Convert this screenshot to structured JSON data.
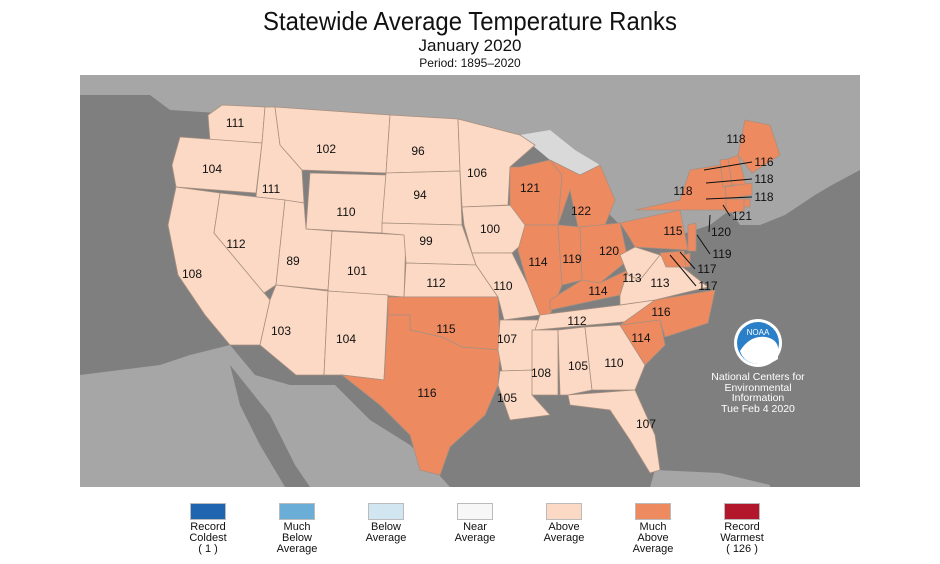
{
  "title": "Statewide Average Temperature Ranks",
  "subtitle": "January 2020",
  "period": "Period: 1895–2020",
  "colors": {
    "land_other": "#a6a6a6",
    "water": "#7f7f7f",
    "water_other": "#d9d9d9",
    "above_average": "#fcd9c4",
    "much_above_average": "#ee8a60",
    "state_border": "#a89080"
  },
  "legend": [
    {
      "label": "Record\nColdest\n( 1 )",
      "color": "#1f65b0"
    },
    {
      "label": "Much\nBelow\nAverage",
      "color": "#6aadd6"
    },
    {
      "label": "Below\nAverage",
      "color": "#d2e6f1"
    },
    {
      "label": "Near\nAverage",
      "color": "#f7f7f7"
    },
    {
      "label": "Above\nAverage",
      "color": "#fcd9c4"
    },
    {
      "label": "Much\nAbove\nAverage",
      "color": "#ee8a60"
    },
    {
      "label": "Record\nWarmest\n( 126 )",
      "color": "#b2172b"
    }
  ],
  "agency": {
    "logo_text": "NOAA",
    "lines": [
      "National Centers for",
      "Environmental",
      "Information",
      "Tue Feb  4 2020"
    ]
  },
  "states": [
    {
      "abbr": "WA",
      "rank": "111",
      "category": "above"
    },
    {
      "abbr": "OR",
      "rank": "104",
      "category": "above"
    },
    {
      "abbr": "CA",
      "rank": "108",
      "category": "above"
    },
    {
      "abbr": "ID",
      "rank": "111",
      "category": "above"
    },
    {
      "abbr": "NV",
      "rank": "112",
      "category": "above"
    },
    {
      "abbr": "MT",
      "rank": "102",
      "category": "above"
    },
    {
      "abbr": "WY",
      "rank": "110",
      "category": "above"
    },
    {
      "abbr": "UT",
      "rank": "89",
      "category": "above"
    },
    {
      "abbr": "CO",
      "rank": "101",
      "category": "above"
    },
    {
      "abbr": "AZ",
      "rank": "103",
      "category": "above"
    },
    {
      "abbr": "NM",
      "rank": "104",
      "category": "above"
    },
    {
      "abbr": "ND",
      "rank": "96",
      "category": "above"
    },
    {
      "abbr": "SD",
      "rank": "94",
      "category": "above"
    },
    {
      "abbr": "NE",
      "rank": "99",
      "category": "above"
    },
    {
      "abbr": "KS",
      "rank": "112",
      "category": "above"
    },
    {
      "abbr": "OK",
      "rank": "115",
      "category": "much_above"
    },
    {
      "abbr": "TX",
      "rank": "116",
      "category": "much_above"
    },
    {
      "abbr": "MN",
      "rank": "106",
      "category": "above"
    },
    {
      "abbr": "IA",
      "rank": "100",
      "category": "above"
    },
    {
      "abbr": "MO",
      "rank": "110",
      "category": "above"
    },
    {
      "abbr": "AR",
      "rank": "107",
      "category": "above"
    },
    {
      "abbr": "LA",
      "rank": "105",
      "category": "above"
    },
    {
      "abbr": "WI",
      "rank": "121",
      "category": "much_above"
    },
    {
      "abbr": "MI",
      "rank": "122",
      "category": "much_above"
    },
    {
      "abbr": "IL",
      "rank": "114",
      "category": "much_above"
    },
    {
      "abbr": "IN",
      "rank": "119",
      "category": "much_above"
    },
    {
      "abbr": "OH",
      "rank": "120",
      "category": "much_above"
    },
    {
      "abbr": "KY",
      "rank": "114",
      "category": "much_above"
    },
    {
      "abbr": "TN",
      "rank": "112",
      "category": "above"
    },
    {
      "abbr": "MS",
      "rank": "108",
      "category": "above"
    },
    {
      "abbr": "AL",
      "rank": "105",
      "category": "above"
    },
    {
      "abbr": "GA",
      "rank": "110",
      "category": "above"
    },
    {
      "abbr": "FL",
      "rank": "107",
      "category": "above"
    },
    {
      "abbr": "SC",
      "rank": "114",
      "category": "much_above"
    },
    {
      "abbr": "NC",
      "rank": "116",
      "category": "much_above"
    },
    {
      "abbr": "VA",
      "rank": "113",
      "category": "above"
    },
    {
      "abbr": "WV",
      "rank": "113",
      "category": "above"
    },
    {
      "abbr": "PA",
      "rank": "115",
      "category": "much_above"
    },
    {
      "abbr": "NY",
      "rank": "118",
      "category": "much_above"
    },
    {
      "abbr": "ME",
      "rank": "118",
      "category": "much_above"
    },
    {
      "abbr": "NH",
      "rank": "116",
      "category": "much_above"
    },
    {
      "abbr": "VT",
      "rank": "118",
      "category": "much_above"
    },
    {
      "abbr": "MA",
      "rank": "118",
      "category": "much_above"
    },
    {
      "abbr": "RI",
      "rank": "121",
      "category": "much_above"
    },
    {
      "abbr": "CT",
      "rank": "120",
      "category": "much_above"
    },
    {
      "abbr": "NJ",
      "rank": "119",
      "category": "much_above"
    },
    {
      "abbr": "DE",
      "rank": "117",
      "category": "much_above"
    },
    {
      "abbr": "MD",
      "rank": "117",
      "category": "much_above"
    }
  ]
}
